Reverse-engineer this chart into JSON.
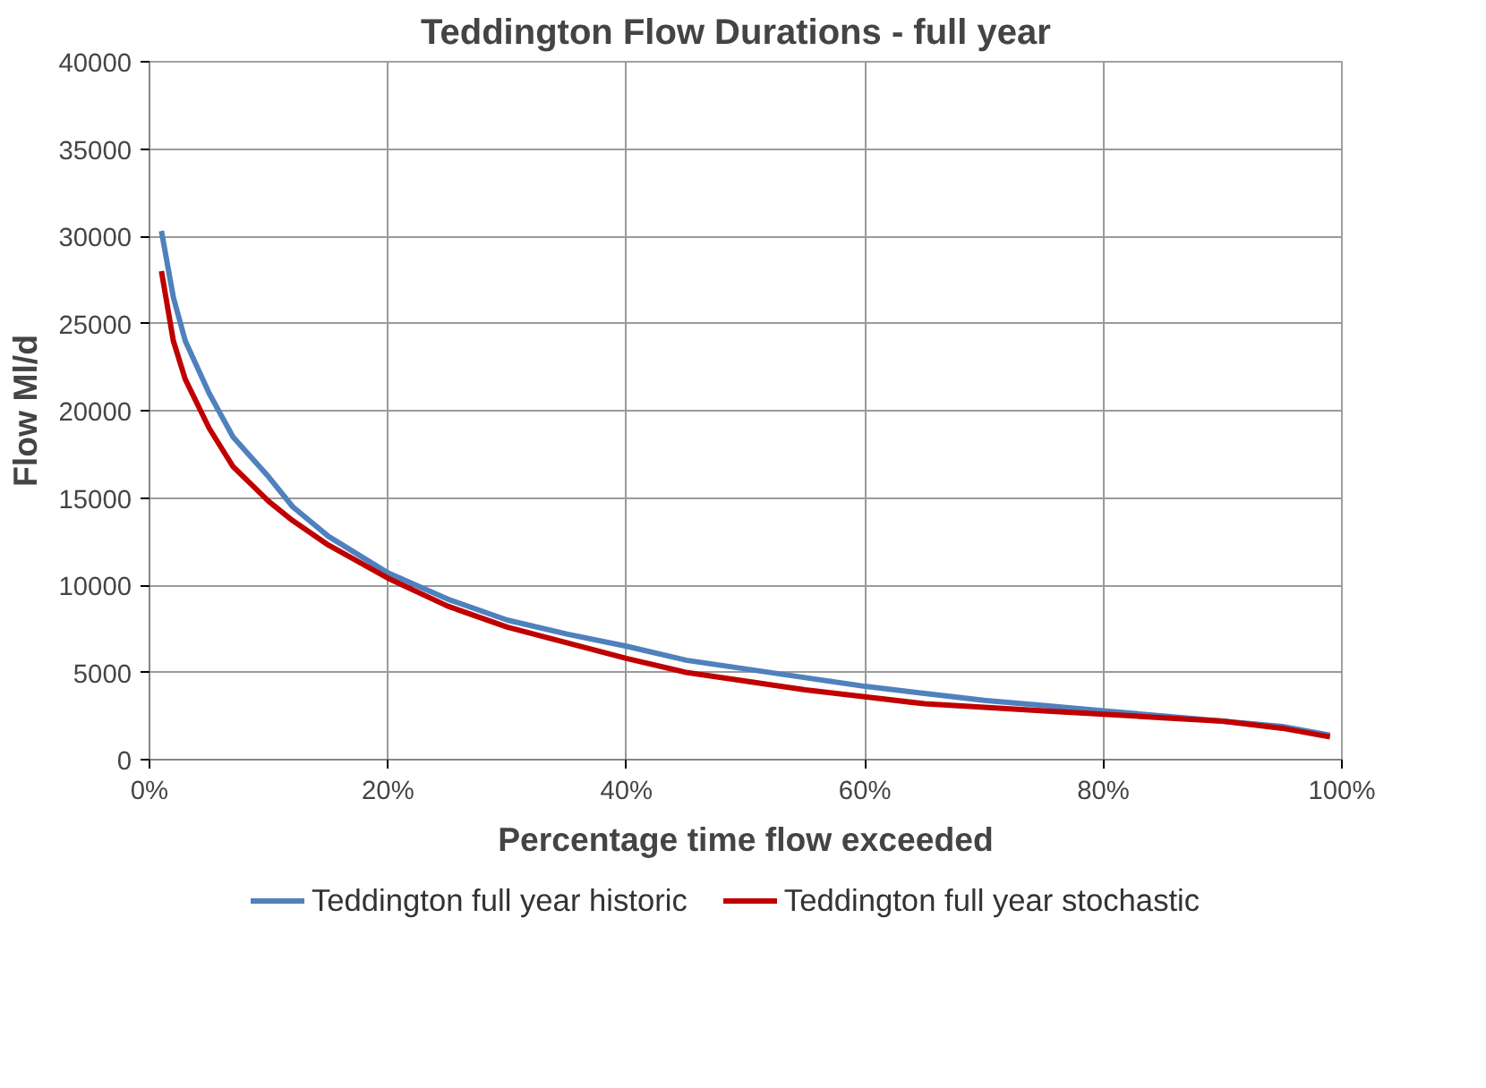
{
  "chart_data": {
    "type": "line",
    "title": "Teddington  Flow Durations  - full year",
    "xlabel": "Percentage time flow exceeded",
    "ylabel": "Flow Ml/d",
    "x": [
      1,
      2,
      3,
      5,
      7,
      10,
      12,
      15,
      20,
      25,
      30,
      35,
      40,
      45,
      50,
      55,
      60,
      65,
      70,
      75,
      80,
      85,
      90,
      95,
      99
    ],
    "series": [
      {
        "name": "Teddington full year historic",
        "color": "#4f81bd",
        "values": [
          30300,
          26500,
          24000,
          21000,
          18500,
          16200,
          14500,
          12800,
          10700,
          9200,
          8000,
          7200,
          6500,
          5700,
          5200,
          4700,
          4200,
          3800,
          3400,
          3100,
          2800,
          2500,
          2200,
          1900,
          1400
        ]
      },
      {
        "name": "Teddington full year stochastic",
        "color": "#c00000",
        "values": [
          28000,
          24000,
          21800,
          19000,
          16800,
          14800,
          13700,
          12300,
          10400,
          8800,
          7600,
          6700,
          5800,
          5000,
          4500,
          4000,
          3600,
          3200,
          3000,
          2800,
          2600,
          2400,
          2200,
          1800,
          1300
        ]
      }
    ],
    "xlim": [
      0,
      100
    ],
    "xticks": [
      {
        "value": 0,
        "label": "0%"
      },
      {
        "value": 20,
        "label": "20%"
      },
      {
        "value": 40,
        "label": "40%"
      },
      {
        "value": 60,
        "label": "60%"
      },
      {
        "value": 80,
        "label": "80%"
      },
      {
        "value": 100,
        "label": "100%"
      }
    ],
    "ylim": [
      0,
      40000
    ],
    "yticks": [
      0,
      5000,
      10000,
      15000,
      20000,
      25000,
      30000,
      35000,
      40000
    ],
    "grid": true,
    "legend": "bottom",
    "line_style": "solid"
  }
}
